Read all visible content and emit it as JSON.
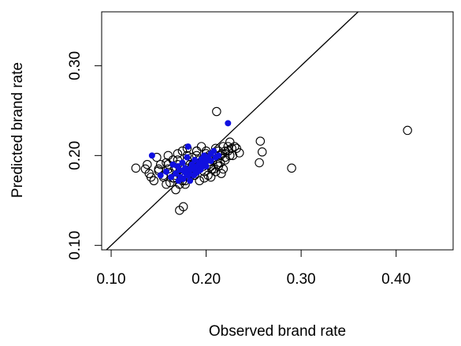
{
  "chart_data": {
    "type": "scatter",
    "title": "",
    "xlabel": "Observed brand rate",
    "ylabel": "Predicted brand rate",
    "xlim": [
      0.09,
      0.46
    ],
    "ylim": [
      0.095,
      0.36
    ],
    "x_ticks": [
      0.1,
      0.2,
      0.3,
      0.4
    ],
    "x_tick_labels": [
      "0.10",
      "0.20",
      "0.30",
      "0.40"
    ],
    "y_ticks": [
      0.1,
      0.2,
      0.3
    ],
    "y_tick_labels": [
      "0.10",
      "0.20",
      "0.30"
    ],
    "grid": false,
    "reference_line": {
      "type": "identity",
      "slope": 1,
      "intercept": 0
    },
    "colors": {
      "open": "#000000",
      "filled": "#1010e0"
    },
    "series": [
      {
        "marker": "open-circle",
        "x": [
          0.412,
          0.211,
          0.257,
          0.259,
          0.256,
          0.29,
          0.126,
          0.176,
          0.172,
          0.136,
          0.138,
          0.142,
          0.145,
          0.15,
          0.152,
          0.155,
          0.158,
          0.16,
          0.162,
          0.165,
          0.168,
          0.17,
          0.172,
          0.175,
          0.178,
          0.18,
          0.183,
          0.185,
          0.188,
          0.19,
          0.193,
          0.195,
          0.198,
          0.2,
          0.203,
          0.205,
          0.208,
          0.21,
          0.213,
          0.215,
          0.218,
          0.22,
          0.223,
          0.225,
          0.228,
          0.232,
          0.235,
          0.16,
          0.165,
          0.17,
          0.175,
          0.18,
          0.185,
          0.19,
          0.195,
          0.2,
          0.205,
          0.21,
          0.215,
          0.22,
          0.225,
          0.168,
          0.172,
          0.178,
          0.182,
          0.188,
          0.192,
          0.198,
          0.202,
          0.208,
          0.212,
          0.218,
          0.155,
          0.163,
          0.173,
          0.183,
          0.193,
          0.203,
          0.213,
          0.223,
          0.148,
          0.158,
          0.167,
          0.177,
          0.187,
          0.197,
          0.207,
          0.217,
          0.227,
          0.14,
          0.15,
          0.16,
          0.17,
          0.18,
          0.19,
          0.2,
          0.21,
          0.22,
          0.23,
          0.166,
          0.176,
          0.186,
          0.196,
          0.206,
          0.216
        ],
        "y": [
          0.228,
          0.249,
          0.216,
          0.204,
          0.192,
          0.186,
          0.186,
          0.143,
          0.139,
          0.185,
          0.19,
          0.176,
          0.172,
          0.183,
          0.19,
          0.178,
          0.168,
          0.185,
          0.17,
          0.175,
          0.162,
          0.19,
          0.182,
          0.172,
          0.168,
          0.195,
          0.176,
          0.188,
          0.178,
          0.2,
          0.172,
          0.192,
          0.182,
          0.205,
          0.19,
          0.176,
          0.198,
          0.208,
          0.188,
          0.2,
          0.21,
          0.195,
          0.205,
          0.215,
          0.2,
          0.208,
          0.203,
          0.2,
          0.195,
          0.202,
          0.205,
          0.208,
          0.198,
          0.205,
          0.21,
          0.198,
          0.188,
          0.182,
          0.192,
          0.198,
          0.2,
          0.178,
          0.168,
          0.172,
          0.18,
          0.185,
          0.188,
          0.175,
          0.178,
          0.185,
          0.19,
          0.185,
          0.176,
          0.18,
          0.185,
          0.19,
          0.195,
          0.2,
          0.205,
          0.21,
          0.198,
          0.192,
          0.186,
          0.178,
          0.182,
          0.188,
          0.195,
          0.202,
          0.208,
          0.18,
          0.185,
          0.19,
          0.195,
          0.2,
          0.205,
          0.202,
          0.2,
          0.205,
          0.21,
          0.175,
          0.18,
          0.19,
          0.195,
          0.185,
          0.18
        ]
      },
      {
        "marker": "filled-circle",
        "x": [
          0.223,
          0.143,
          0.165,
          0.17,
          0.172,
          0.175,
          0.178,
          0.18,
          0.182,
          0.185,
          0.188,
          0.19,
          0.193,
          0.195,
          0.198,
          0.2,
          0.168,
          0.173,
          0.177,
          0.181,
          0.186,
          0.189,
          0.192,
          0.196,
          0.199,
          0.202,
          0.205,
          0.208,
          0.176,
          0.183,
          0.187,
          0.191,
          0.194,
          0.197,
          0.152,
          0.158,
          0.163,
          0.171,
          0.179,
          0.184,
          0.181,
          0.2,
          0.205,
          0.21,
          0.213
        ],
        "y": [
          0.236,
          0.2,
          0.19,
          0.188,
          0.184,
          0.192,
          0.186,
          0.198,
          0.182,
          0.19,
          0.195,
          0.188,
          0.192,
          0.196,
          0.2,
          0.194,
          0.18,
          0.176,
          0.182,
          0.178,
          0.185,
          0.18,
          0.186,
          0.19,
          0.192,
          0.198,
          0.202,
          0.205,
          0.174,
          0.172,
          0.178,
          0.182,
          0.184,
          0.188,
          0.178,
          0.182,
          0.176,
          0.172,
          0.18,
          0.186,
          0.21,
          0.188,
          0.194,
          0.198,
          0.2
        ]
      }
    ]
  }
}
